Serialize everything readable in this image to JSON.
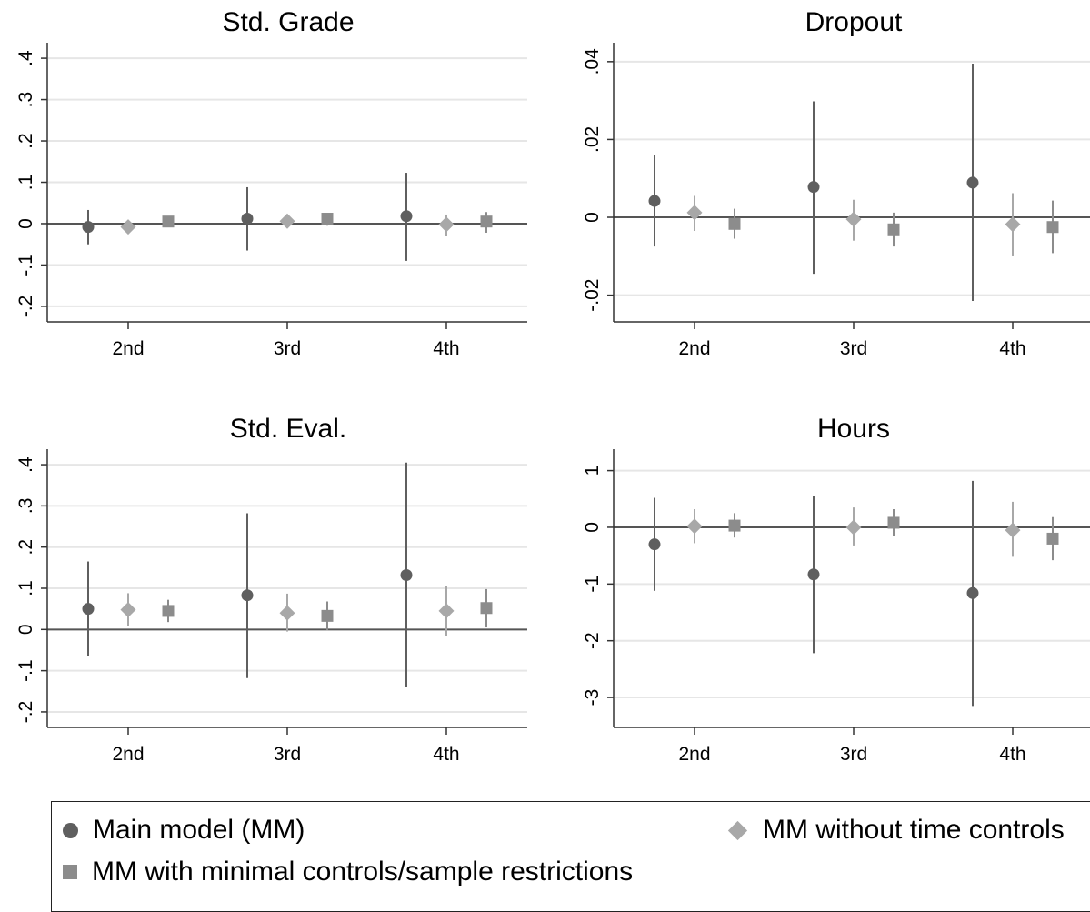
{
  "chart_data": [
    {
      "type": "scatter",
      "title": "Std. Grade",
      "categories": [
        "2nd",
        "3rd",
        "4th"
      ],
      "yticks": [
        ".4",
        ".3",
        ".2",
        ".1",
        "0",
        "-.1",
        "-.2"
      ],
      "ylim": [
        -0.22,
        0.42
      ],
      "series": [
        {
          "name": "Main model (MM)",
          "marker": "circle",
          "color": "#5f5f5f",
          "values": [
            -0.008,
            0.012,
            0.018
          ],
          "lower": [
            -0.05,
            -0.065,
            -0.09
          ],
          "upper": [
            0.033,
            0.088,
            0.123
          ]
        },
        {
          "name": "MM without time controls",
          "marker": "diamond",
          "color": "#a8a8a8",
          "values": [
            -0.008,
            0.006,
            -0.002
          ],
          "lower": [
            -0.016,
            -0.002,
            -0.03
          ],
          "upper": [
            0.0,
            0.013,
            0.022
          ]
        },
        {
          "name": "MM with minimal controls/sample restrictions",
          "marker": "square",
          "color": "#8c8c8c",
          "values": [
            0.005,
            0.012,
            0.005
          ],
          "lower": [
            -0.004,
            -0.005,
            -0.022
          ],
          "upper": [
            0.012,
            0.025,
            0.028
          ]
        }
      ]
    },
    {
      "type": "scatter",
      "title": "Dropout",
      "categories": [
        "2nd",
        "3rd",
        "4th"
      ],
      "yticks": [
        ".04",
        ".02",
        "0",
        "-.02"
      ],
      "ylim": [
        -0.025,
        0.043
      ],
      "series": [
        {
          "name": "Main model (MM)",
          "marker": "circle",
          "color": "#5f5f5f",
          "values": [
            0.0042,
            0.0078,
            0.0089
          ],
          "lower": [
            -0.0075,
            -0.0145,
            -0.0215
          ],
          "upper": [
            0.016,
            0.0298,
            0.0395
          ]
        },
        {
          "name": "MM without time controls",
          "marker": "diamond",
          "color": "#a8a8a8",
          "values": [
            0.0012,
            -0.0005,
            -0.0018
          ],
          "lower": [
            -0.0035,
            -0.006,
            -0.0098
          ],
          "upper": [
            0.0055,
            0.0045,
            0.0062
          ]
        },
        {
          "name": "MM with minimal controls/sample restrictions",
          "marker": "square",
          "color": "#8c8c8c",
          "values": [
            -0.0017,
            -0.0031,
            -0.0025
          ],
          "lower": [
            -0.0055,
            -0.0075,
            -0.0092
          ],
          "upper": [
            0.0022,
            0.0012,
            0.0043
          ]
        }
      ]
    },
    {
      "type": "scatter",
      "title": "Std. Eval.",
      "categories": [
        "2nd",
        "3rd",
        "4th"
      ],
      "yticks": [
        ".4",
        ".3",
        ".2",
        ".1",
        "0",
        "-.1",
        "-.2"
      ],
      "ylim": [
        -0.22,
        0.42
      ],
      "series": [
        {
          "name": "Main model (MM)",
          "marker": "circle",
          "color": "#5f5f5f",
          "values": [
            0.05,
            0.083,
            0.132
          ],
          "lower": [
            -0.065,
            -0.118,
            -0.14
          ],
          "upper": [
            0.165,
            0.282,
            0.405
          ]
        },
        {
          "name": "MM without time controls",
          "marker": "diamond",
          "color": "#a8a8a8",
          "values": [
            0.048,
            0.04,
            0.045
          ],
          "lower": [
            0.008,
            -0.005,
            -0.015
          ],
          "upper": [
            0.088,
            0.087,
            0.105
          ]
        },
        {
          "name": "MM with minimal controls/sample restrictions",
          "marker": "square",
          "color": "#8c8c8c",
          "values": [
            0.045,
            0.033,
            0.052
          ],
          "lower": [
            0.018,
            -0.002,
            0.005
          ],
          "upper": [
            0.072,
            0.068,
            0.098
          ]
        }
      ]
    },
    {
      "type": "scatter",
      "title": "Hours",
      "categories": [
        "2nd",
        "3rd",
        "4th"
      ],
      "yticks": [
        "1",
        "0",
        "-1",
        "-2",
        "-3"
      ],
      "ylim": [
        -3.4,
        1.25
      ],
      "series": [
        {
          "name": "Main model (MM)",
          "marker": "circle",
          "color": "#5f5f5f",
          "values": [
            -0.3,
            -0.83,
            -1.16
          ],
          "lower": [
            -1.12,
            -2.22,
            -3.15
          ],
          "upper": [
            0.52,
            0.55,
            0.82
          ]
        },
        {
          "name": "MM without time controls",
          "marker": "diamond",
          "color": "#a8a8a8",
          "values": [
            0.02,
            0.0,
            -0.05
          ],
          "lower": [
            -0.28,
            -0.32,
            -0.52
          ],
          "upper": [
            0.32,
            0.35,
            0.45
          ]
        },
        {
          "name": "MM with minimal controls/sample restrictions",
          "marker": "square",
          "color": "#8c8c8c",
          "values": [
            0.03,
            0.08,
            -0.2
          ],
          "lower": [
            -0.18,
            -0.15,
            -0.58
          ],
          "upper": [
            0.25,
            0.32,
            0.18
          ]
        }
      ]
    }
  ],
  "legend": {
    "items": [
      {
        "label": "Main model (MM)",
        "marker": "circle"
      },
      {
        "label": "MM without time controls",
        "marker": "diamond"
      },
      {
        "label": "MM with minimal controls/sample restrictions",
        "marker": "square"
      }
    ]
  }
}
